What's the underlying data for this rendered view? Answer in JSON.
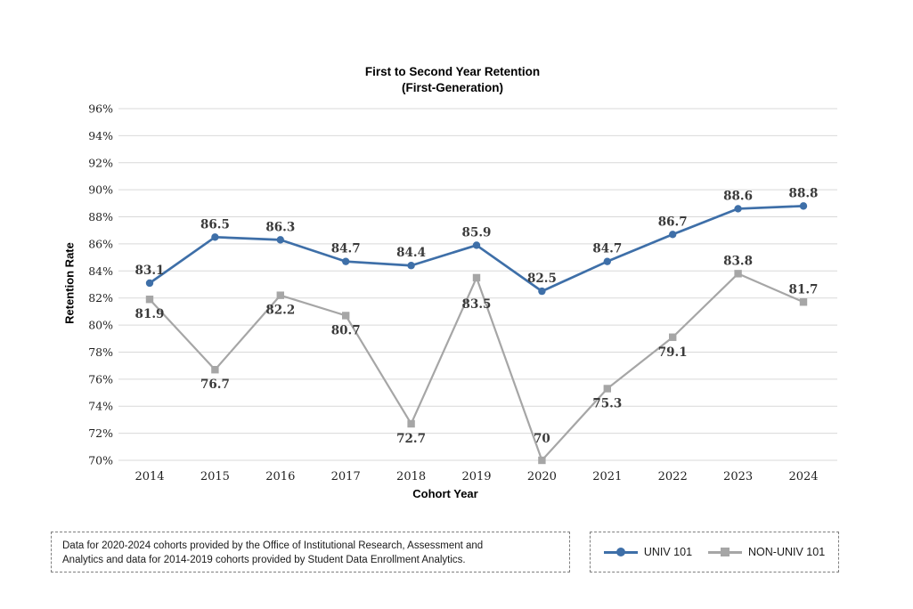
{
  "chart_data": {
    "type": "line",
    "title": "First to Second Year Retention (First-Generation)",
    "title_line1": "First to Second Year Retention",
    "title_line2": "(First-Generation)",
    "xlabel": "Cohort Year",
    "ylabel": "Retention Rate",
    "ylim": [
      70,
      96
    ],
    "ytick_step": 2,
    "ytick_suffix": "%",
    "grid": true,
    "gridline_color": "#d9d9d9",
    "legend_position": "bottom-right-box",
    "categories": [
      "2014",
      "2015",
      "2016",
      "2017",
      "2018",
      "2019",
      "2020",
      "2021",
      "2022",
      "2023",
      "2024"
    ],
    "series": [
      {
        "name": "UNIV 101",
        "color": "#3e6fa8",
        "marker": "circle",
        "values": [
          83.1,
          86.5,
          86.3,
          84.7,
          84.4,
          85.9,
          82.5,
          84.7,
          86.7,
          88.6,
          88.8
        ],
        "label_positions": [
          "above",
          "above",
          "above",
          "above",
          "above",
          "above",
          "above",
          "above",
          "above",
          "above",
          "above"
        ]
      },
      {
        "name": "NON-UNIV 101",
        "color": "#a6a6a6",
        "marker": "square",
        "values": [
          81.9,
          76.7,
          82.2,
          80.7,
          72.7,
          83.5,
          70,
          75.3,
          79.1,
          83.8,
          81.7
        ],
        "label_positions": [
          "below",
          "below",
          "below",
          "below",
          "below",
          "below-far",
          "above-far",
          "below",
          "below",
          "above",
          "above"
        ]
      }
    ]
  },
  "footnote": {
    "line1": "Data for 2020-2024 cohorts provided by the Office of Institutional Research, Assessment and",
    "line2": "Analytics and data for 2014-2019 cohorts provided by Student Data Enrollment Analytics."
  }
}
